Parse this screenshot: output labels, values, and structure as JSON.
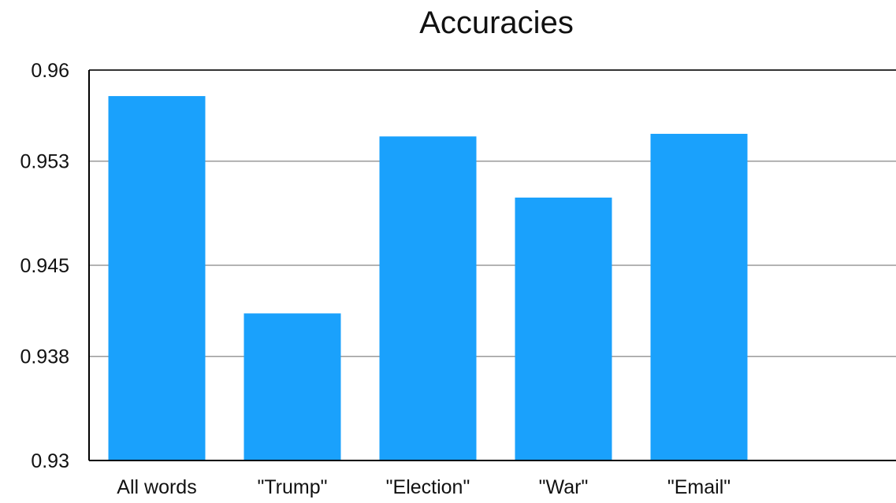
{
  "chart_data": {
    "type": "bar",
    "title": "Accuracies",
    "xlabel": "",
    "ylabel": "",
    "categories": [
      "All words",
      "\"Trump\"",
      "\"Election\"",
      "\"War\"",
      "\"Email\""
    ],
    "values": [
      0.958,
      0.9413,
      0.9549,
      0.9502,
      0.9551
    ],
    "ylim": [
      0.93,
      0.96
    ],
    "yticks": [
      0.93,
      0.938,
      0.945,
      0.953,
      0.96
    ],
    "ytick_labels": [
      "0.93",
      "0.938",
      "0.945",
      "0.953",
      "0.96"
    ],
    "grid": true,
    "legend": "none",
    "bar_color": "#1aa1fc",
    "grid_color": "#9a9a9a",
    "axis_color": "#000000"
  }
}
